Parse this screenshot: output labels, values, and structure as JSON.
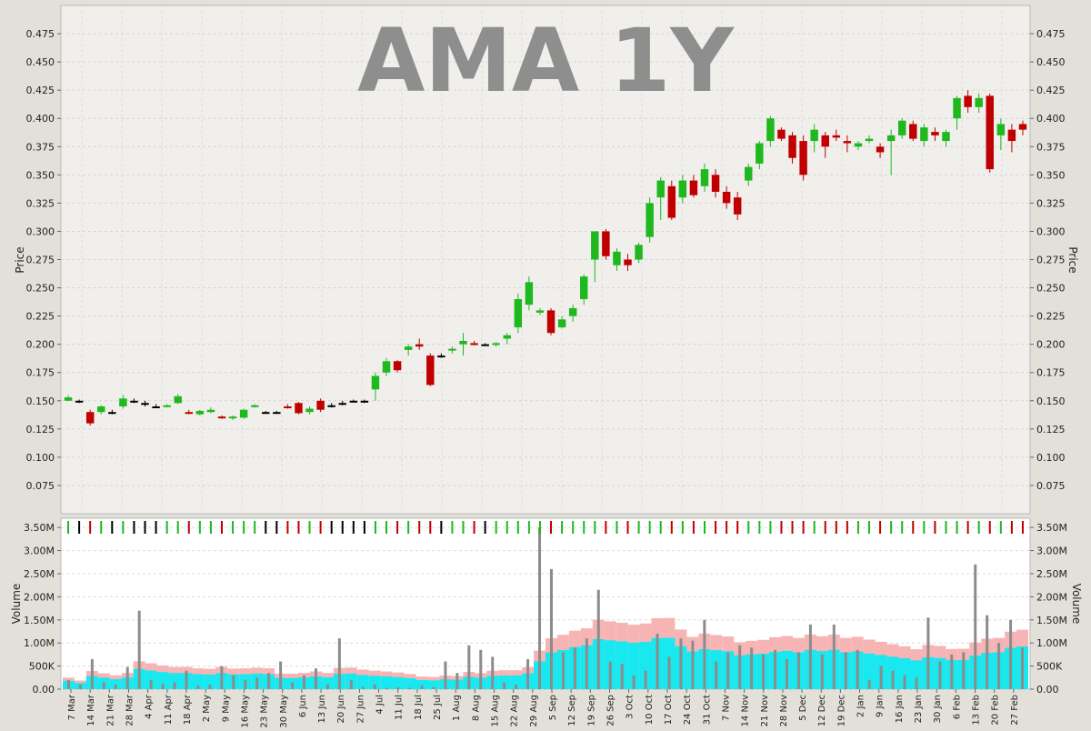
{
  "chart_data": [
    {
      "type": "candlestick",
      "title": "AMA 1Y",
      "ylabel": "Price",
      "ylim": [
        0.05,
        0.5
      ],
      "yticks": [
        0.075,
        0.1,
        0.125,
        0.15,
        0.175,
        0.2,
        0.225,
        0.25,
        0.275,
        0.3,
        0.325,
        0.35,
        0.375,
        0.4,
        0.425,
        0.45,
        0.475
      ],
      "ytick_labels": [
        "0.075",
        "0.100",
        "0.125",
        "0.150",
        "0.175",
        "0.200",
        "0.225",
        "0.250",
        "0.275",
        "0.300",
        "0.325",
        "0.350",
        "0.375",
        "0.400",
        "0.425",
        "0.450",
        "0.475"
      ],
      "grid": true,
      "series": [
        {
          "values": [
            [
              0.15,
              0.155,
              0.15,
              0.153
            ],
            [
              0.15,
              0.151,
              0.148,
              0.15
            ],
            [
              0.14,
              0.142,
              0.128,
              0.13
            ],
            [
              0.14,
              0.146,
              0.138,
              0.145
            ],
            [
              0.14,
              0.142,
              0.138,
              0.14
            ],
            [
              0.145,
              0.155,
              0.143,
              0.152
            ],
            [
              0.15,
              0.152,
              0.148,
              0.15
            ],
            [
              0.148,
              0.15,
              0.145,
              0.148
            ],
            [
              0.145,
              0.147,
              0.144,
              0.145
            ],
            [
              0.145,
              0.147,
              0.144,
              0.146
            ],
            [
              0.148,
              0.156,
              0.147,
              0.154
            ],
            [
              0.14,
              0.142,
              0.138,
              0.139
            ],
            [
              0.138,
              0.142,
              0.137,
              0.141
            ],
            [
              0.14,
              0.144,
              0.139,
              0.142
            ],
            [
              0.136,
              0.137,
              0.134,
              0.135
            ],
            [
              0.135,
              0.137,
              0.133,
              0.136
            ],
            [
              0.135,
              0.143,
              0.134,
              0.142
            ],
            [
              0.145,
              0.147,
              0.144,
              0.146
            ],
            [
              0.14,
              0.141,
              0.139,
              0.14
            ],
            [
              0.14,
              0.141,
              0.139,
              0.14
            ],
            [
              0.145,
              0.147,
              0.143,
              0.144
            ],
            [
              0.148,
              0.149,
              0.138,
              0.139
            ],
            [
              0.14,
              0.145,
              0.138,
              0.143
            ],
            [
              0.15,
              0.152,
              0.14,
              0.142
            ],
            [
              0.146,
              0.148,
              0.144,
              0.146
            ],
            [
              0.148,
              0.15,
              0.146,
              0.148
            ],
            [
              0.15,
              0.151,
              0.149,
              0.15
            ],
            [
              0.15,
              0.151,
              0.148,
              0.15
            ],
            [
              0.16,
              0.175,
              0.15,
              0.172
            ],
            [
              0.175,
              0.188,
              0.172,
              0.185
            ],
            [
              0.185,
              0.186,
              0.175,
              0.177
            ],
            [
              0.195,
              0.2,
              0.19,
              0.198
            ],
            [
              0.2,
              0.205,
              0.195,
              0.198
            ],
            [
              0.19,
              0.192,
              0.163,
              0.164
            ],
            [
              0.19,
              0.192,
              0.188,
              0.19
            ],
            [
              0.195,
              0.198,
              0.192,
              0.196
            ],
            [
              0.2,
              0.21,
              0.19,
              0.203
            ],
            [
              0.201,
              0.203,
              0.199,
              0.2
            ],
            [
              0.2,
              0.201,
              0.199,
              0.2
            ],
            [
              0.2,
              0.202,
              0.198,
              0.201
            ],
            [
              0.205,
              0.21,
              0.2,
              0.208
            ],
            [
              0.215,
              0.245,
              0.21,
              0.24
            ],
            [
              0.235,
              0.26,
              0.23,
              0.255
            ],
            [
              0.228,
              0.232,
              0.226,
              0.23
            ],
            [
              0.23,
              0.232,
              0.208,
              0.21
            ],
            [
              0.215,
              0.225,
              0.214,
              0.222
            ],
            [
              0.225,
              0.235,
              0.22,
              0.232
            ],
            [
              0.24,
              0.262,
              0.235,
              0.26
            ],
            [
              0.275,
              0.3,
              0.255,
              0.3
            ],
            [
              0.3,
              0.302,
              0.275,
              0.278
            ],
            [
              0.27,
              0.285,
              0.265,
              0.282
            ],
            [
              0.275,
              0.28,
              0.265,
              0.27
            ],
            [
              0.275,
              0.29,
              0.272,
              0.288
            ],
            [
              0.295,
              0.33,
              0.29,
              0.325
            ],
            [
              0.33,
              0.348,
              0.31,
              0.345
            ],
            [
              0.34,
              0.345,
              0.31,
              0.312
            ],
            [
              0.33,
              0.35,
              0.325,
              0.345
            ],
            [
              0.345,
              0.35,
              0.33,
              0.332
            ],
            [
              0.34,
              0.36,
              0.335,
              0.355
            ],
            [
              0.35,
              0.355,
              0.33,
              0.335
            ],
            [
              0.335,
              0.34,
              0.32,
              0.325
            ],
            [
              0.33,
              0.335,
              0.31,
              0.315
            ],
            [
              0.345,
              0.36,
              0.34,
              0.357
            ],
            [
              0.36,
              0.38,
              0.355,
              0.378
            ],
            [
              0.38,
              0.402,
              0.375,
              0.4
            ],
            [
              0.39,
              0.392,
              0.38,
              0.382
            ],
            [
              0.385,
              0.388,
              0.36,
              0.365
            ],
            [
              0.38,
              0.385,
              0.345,
              0.35
            ],
            [
              0.38,
              0.395,
              0.37,
              0.39
            ],
            [
              0.385,
              0.388,
              0.365,
              0.375
            ],
            [
              0.385,
              0.39,
              0.38,
              0.383
            ],
            [
              0.38,
              0.385,
              0.37,
              0.378
            ],
            [
              0.375,
              0.38,
              0.372,
              0.378
            ],
            [
              0.38,
              0.385,
              0.378,
              0.382
            ],
            [
              0.375,
              0.378,
              0.365,
              0.37
            ],
            [
              0.38,
              0.39,
              0.35,
              0.385
            ],
            [
              0.385,
              0.4,
              0.382,
              0.398
            ],
            [
              0.395,
              0.398,
              0.38,
              0.382
            ],
            [
              0.38,
              0.395,
              0.375,
              0.392
            ],
            [
              0.388,
              0.392,
              0.38,
              0.385
            ],
            [
              0.38,
              0.39,
              0.375,
              0.388
            ],
            [
              0.4,
              0.42,
              0.39,
              0.418
            ],
            [
              0.42,
              0.425,
              0.405,
              0.41
            ],
            [
              0.41,
              0.422,
              0.405,
              0.418
            ],
            [
              0.42,
              0.422,
              0.352,
              0.355
            ],
            [
              0.385,
              0.4,
              0.372,
              0.395
            ],
            [
              0.39,
              0.395,
              0.37,
              0.38
            ],
            [
              0.395,
              0.398,
              0.385,
              0.39
            ]
          ]
        }
      ]
    },
    {
      "type": "bar",
      "ylabel": "Volume",
      "ylim": [
        0,
        3700000
      ],
      "yticks": [
        0,
        500000,
        1000000,
        1500000,
        2000000,
        2500000,
        3000000,
        3500000
      ],
      "ytick_labels": [
        "0.00",
        "500K",
        "1.00M",
        "1.50M",
        "2.00M",
        "2.50M",
        "3.00M",
        "3.50M"
      ],
      "x_labels": [
        "7 Mar",
        "14 Mar",
        "21 Mar",
        "28 Mar",
        "4 Apr",
        "11 Apr",
        "18 Apr",
        "2 May",
        "9 May",
        "16 May",
        "23 May",
        "30 May",
        "6 Jun",
        "13 Jun",
        "20 Jun",
        "27 Jun",
        "4 Jul",
        "11 Jul",
        "18 Jul",
        "25 Jul",
        "1 Aug",
        "8 Aug",
        "15 Aug",
        "22 Aug",
        "29 Aug",
        "5 Sep",
        "12 Sep",
        "19 Sep",
        "26 Sep",
        "3 Oct",
        "10 Oct",
        "17 Oct",
        "24 Oct",
        "31 Oct",
        "7 Nov",
        "14 Nov",
        "21 Nov",
        "28 Nov",
        "5 Dec",
        "12 Dec",
        "19 Dec",
        "2 Jan",
        "9 Jan",
        "16 Jan",
        "23 Jan",
        "30 Jan",
        "6 Feb",
        "13 Feb",
        "20 Feb",
        "27 Feb"
      ],
      "grid": true,
      "series": [
        {
          "values": [
            200000,
            100000,
            650000,
            150000,
            100000,
            480000,
            1700000,
            200000,
            120000,
            150000,
            400000,
            80000,
            100000,
            500000,
            300000,
            200000,
            250000,
            350000,
            600000,
            150000,
            300000,
            450000,
            100000,
            1100000,
            200000,
            50000,
            100000,
            30000,
            40000,
            30000,
            80000,
            50000,
            600000,
            350000,
            950000,
            850000,
            700000,
            150000,
            100000,
            650000,
            3500000,
            2600000,
            800000,
            900000,
            1100000,
            2150000,
            600000,
            550000,
            300000,
            400000,
            1200000,
            700000,
            1100000,
            1050000,
            1500000,
            600000,
            800000,
            950000,
            900000,
            750000,
            850000,
            650000,
            800000,
            1400000,
            750000,
            1400000,
            800000,
            850000,
            200000,
            500000,
            400000,
            300000,
            250000,
            1550000,
            600000,
            750000,
            800000,
            2700000,
            1600000,
            1000000,
            1500000,
            900000
          ]
        }
      ]
    }
  ],
  "colors": {
    "up": "#1fb81f",
    "down": "#c00000",
    "unchanged": "#000000",
    "volume_bar": "#8c8c8c",
    "band_outer": "#f7b4b4",
    "band_inner": "#18e8ef"
  }
}
